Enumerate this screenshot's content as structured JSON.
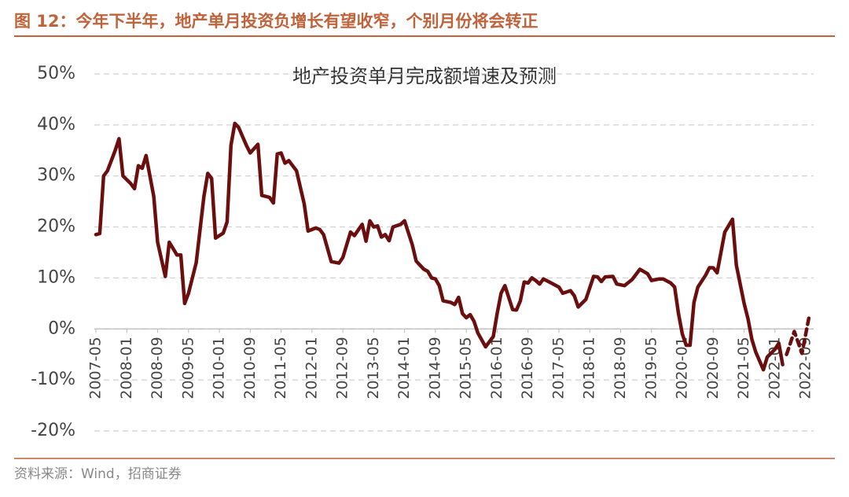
{
  "chart_data": {
    "type": "line",
    "figure_title": "图 12：今年下半年，地产单月投资负增长有望收窄，个别月份将会转正",
    "title": "地产投资单月完成额增速及预测",
    "source": "资料来源：Wind，招商证券",
    "x": [
      "2007-05",
      "2007-06",
      "2007-07",
      "2007-08",
      "2007-10",
      "2007-11",
      "2007-12",
      "2008-02",
      "2008-03",
      "2008-04",
      "2008-05",
      "2008-06",
      "2008-08",
      "2008-09",
      "2008-11",
      "2008-12",
      "2009-02",
      "2009-03",
      "2009-04",
      "2009-05",
      "2009-07",
      "2009-09",
      "2009-10",
      "2009-11",
      "2009-12",
      "2010-02",
      "2010-03",
      "2010-04",
      "2010-05",
      "2010-06",
      "2010-08",
      "2010-09",
      "2010-11",
      "2010-12",
      "2011-02",
      "2011-03",
      "2011-04",
      "2011-05",
      "2011-06",
      "2011-07",
      "2011-09",
      "2011-11",
      "2011-12",
      "2012-02",
      "2012-03",
      "2012-04",
      "2012-06",
      "2012-08",
      "2012-09",
      "2012-11",
      "2012-12",
      "2013-02",
      "2013-03",
      "2013-04",
      "2013-05",
      "2013-06",
      "2013-07",
      "2013-08",
      "2013-09",
      "2013-10",
      "2013-12",
      "2014-01",
      "2014-03",
      "2014-04",
      "2014-06",
      "2014-07",
      "2014-08",
      "2014-09",
      "2014-10",
      "2014-11",
      "2015-01",
      "2015-02",
      "2015-03",
      "2015-04",
      "2015-05",
      "2015-06",
      "2015-07",
      "2015-08",
      "2015-10",
      "2015-12",
      "2016-01",
      "2016-02",
      "2016-03",
      "2016-05",
      "2016-06",
      "2016-07",
      "2016-08",
      "2016-09",
      "2016-10",
      "2016-11",
      "2016-12",
      "2017-01",
      "2017-03",
      "2017-05",
      "2017-06",
      "2017-08",
      "2017-09",
      "2017-10",
      "2017-12",
      "2018-02",
      "2018-03",
      "2018-04",
      "2018-05",
      "2018-07",
      "2018-08",
      "2018-10",
      "2018-12",
      "2019-02",
      "2019-04",
      "2019-05",
      "2019-07",
      "2019-08",
      "2019-10",
      "2019-11",
      "2019-12",
      "2020-01",
      "2020-02",
      "2020-03",
      "2020-04",
      "2020-05",
      "2020-07",
      "2020-08",
      "2020-09",
      "2020-10",
      "2020-12",
      "2021-02",
      "2021-03",
      "2021-05",
      "2021-06",
      "2021-07",
      "2021-08",
      "2021-10",
      "2021-11",
      "2022-01",
      "2022-02",
      "2022-03",
      "2022-04",
      "2022-06",
      "2022-08",
      "2022-10"
    ],
    "series": [
      {
        "color": "#6b0e0e",
        "dashed": false,
        "values": [
          18.5,
          18.7,
          30,
          31,
          35,
          37.3,
          30,
          28.5,
          27.5,
          32,
          31.5,
          34,
          26,
          17,
          10.3,
          17,
          14.5,
          14.5,
          5,
          7,
          13,
          26,
          30.5,
          29.5,
          17.8,
          18.8,
          21,
          36,
          40.3,
          39.5,
          36,
          34.5,
          36.2,
          26.2,
          25.8,
          24.7,
          34.3,
          34.5,
          32.5,
          33,
          31,
          24.5,
          19.2,
          19.8,
          19.5,
          18.5,
          13.2,
          12.9,
          14,
          19,
          18.3,
          20.5,
          17.2,
          21.2,
          20,
          20.2,
          18,
          18.5,
          17.3,
          20,
          20.5,
          21.2,
          16.5,
          13.3,
          11.7,
          11.3,
          10,
          9.8,
          8.5,
          5.5,
          5.2,
          4.8,
          6.2,
          3,
          2.2,
          2.8,
          1.5,
          -0.8,
          -3.5,
          -1.5,
          3,
          7,
          8.5,
          3.8,
          3.7,
          5.5,
          9.2,
          9,
          10,
          9.5,
          8.8,
          9.8,
          9,
          8.2,
          7,
          7.5,
          6.5,
          4.3,
          5.8,
          10.3,
          10.2,
          9.3,
          10.2,
          10.3,
          8.8,
          8.5,
          9.7,
          11.7,
          10.8,
          9.5,
          9.8,
          9.8,
          9,
          8.2,
          3,
          -1,
          -3.2,
          -3.2,
          5.2,
          8.2,
          10.5,
          12,
          12,
          11,
          19,
          21.5,
          12.5,
          5,
          2,
          -2,
          -4.5,
          -8,
          -5.5,
          -4,
          -2.8,
          -7,
          null,
          null,
          null,
          null
        ]
      },
      {
        "color": "#6b0e0e",
        "dashed": true,
        "values": [
          null,
          null,
          null,
          null,
          null,
          null,
          null,
          null,
          null,
          null,
          null,
          null,
          null,
          null,
          null,
          null,
          null,
          null,
          null,
          null,
          null,
          null,
          null,
          null,
          null,
          null,
          null,
          null,
          null,
          null,
          null,
          null,
          null,
          null,
          null,
          null,
          null,
          null,
          null,
          null,
          null,
          null,
          null,
          null,
          null,
          null,
          null,
          null,
          null,
          null,
          null,
          null,
          null,
          null,
          null,
          null,
          null,
          null,
          null,
          null,
          null,
          null,
          null,
          null,
          null,
          null,
          null,
          null,
          null,
          null,
          null,
          null,
          null,
          null,
          null,
          null,
          null,
          null,
          null,
          null,
          null,
          null,
          null,
          null,
          null,
          null,
          null,
          null,
          null,
          null,
          null,
          null,
          null,
          null,
          null,
          null,
          null,
          null,
          null,
          null,
          null,
          null,
          null,
          null,
          null,
          null,
          null,
          null,
          null,
          null,
          null,
          null,
          null,
          null,
          null,
          null,
          null,
          null,
          null,
          null,
          null,
          null,
          null,
          null,
          null,
          null,
          null,
          null,
          null,
          null,
          null,
          null,
          null,
          null,
          null,
          null,
          -5,
          -0.5,
          -4.8,
          3
        ]
      }
    ],
    "xlim": [
      "2007-05",
      "2022-10"
    ],
    "xticks": [
      "2007-05",
      "2008-01",
      "2008-09",
      "2009-05",
      "2010-01",
      "2010-09",
      "2011-05",
      "2012-01",
      "2012-09",
      "2013-05",
      "2014-01",
      "2014-09",
      "2015-05",
      "2016-01",
      "2016-09",
      "2017-05",
      "2018-01",
      "2018-09",
      "2019-05",
      "2020-01",
      "2020-09",
      "2021-05",
      "2022-01",
      "2022-09"
    ],
    "ylim": [
      -20,
      50
    ],
    "yticks": [
      {
        "value": -20,
        "label": "-20%"
      },
      {
        "value": -10,
        "label": "-10%"
      },
      {
        "value": 0,
        "label": "0%"
      },
      {
        "value": 10,
        "label": "10%"
      },
      {
        "value": 20,
        "label": "20%"
      },
      {
        "value": 30,
        "label": "30%"
      },
      {
        "value": 40,
        "label": "40%"
      },
      {
        "value": 50,
        "label": "50%"
      }
    ],
    "grid": true
  }
}
